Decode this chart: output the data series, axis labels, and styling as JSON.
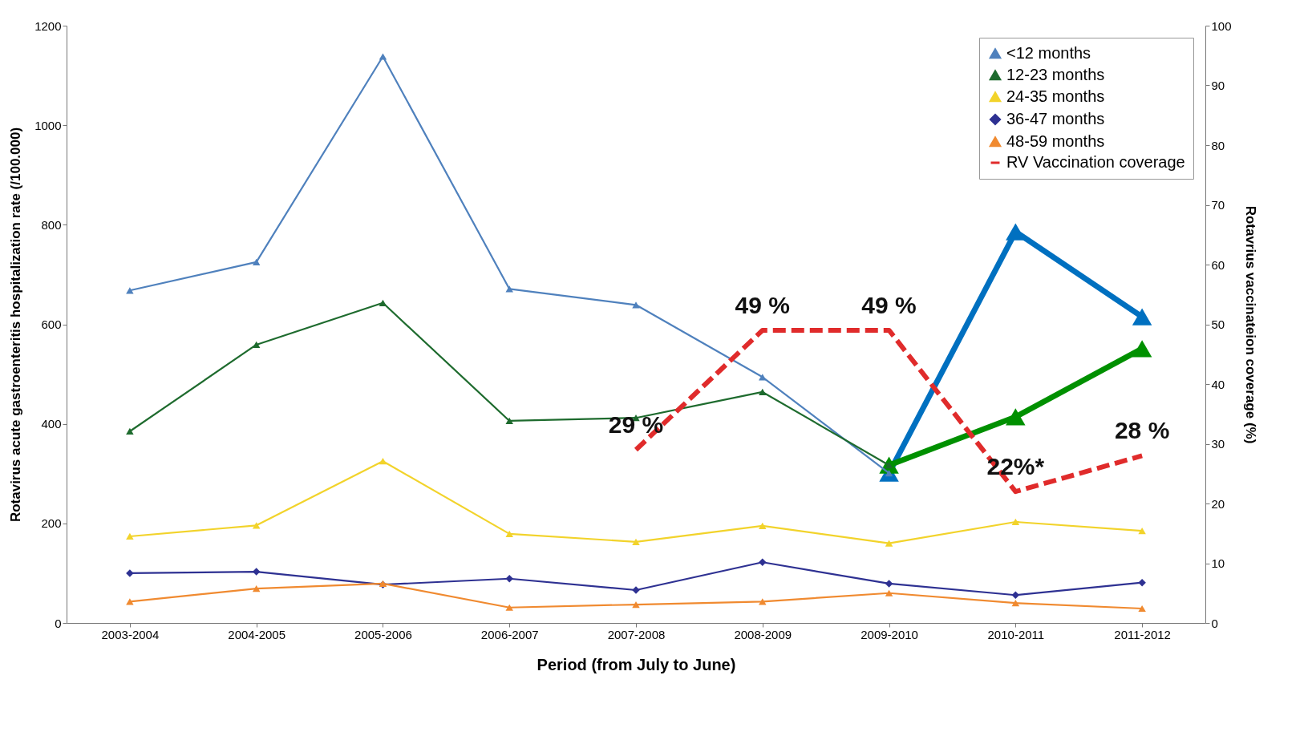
{
  "chart_data": {
    "type": "line",
    "xlabel": "Period (from July to June)",
    "ylabel": "Rotavirus acute gastroenteritis hospitalization rate (/100.000)",
    "y2label": "Rotavrius vaccinateion coverage (%)",
    "categories": [
      "2003-2004",
      "2004-2005",
      "2005-2006",
      "2006-2007",
      "2007-2008",
      "2008-2009",
      "2009-2010",
      "2010-2011",
      "2011-2012"
    ],
    "series": [
      {
        "color": "#0070c0",
        "marker": "triangle",
        "values": [
          null,
          null,
          null,
          null,
          null,
          null,
          301,
          786,
          615
        ]
      },
      {
        "color": "#009000",
        "marker": "triangle",
        "values": [
          null,
          null,
          null,
          null,
          null,
          null,
          317,
          414,
          551
        ]
      },
      {
        "name": "<12 months",
        "color": "#4f81bd",
        "marker": "triangle",
        "values": [
          668,
          725,
          1138,
          671,
          639,
          494,
          301,
          null,
          null
        ]
      },
      {
        "name": "12-23 months",
        "color": "#1e6b2e",
        "marker": "triangle",
        "values": [
          385,
          559,
          643,
          406,
          412,
          464,
          317,
          null,
          null
        ]
      },
      {
        "name": "24-35 months",
        "color": "#f2d32b",
        "marker": "triangle",
        "values": [
          174,
          196,
          325,
          179,
          163,
          195,
          160,
          203,
          185
        ]
      },
      {
        "name": "36-47 months",
        "color": "#2e3192",
        "marker": "diamond",
        "values": [
          100,
          103,
          77,
          89,
          66,
          122,
          79,
          56,
          81
        ]
      },
      {
        "name": "48-59 months",
        "color": "#f08a30",
        "marker": "triangle",
        "values": [
          43,
          69,
          79,
          31,
          37,
          43,
          60,
          40,
          29
        ]
      },
      {
        "name": "RV Vaccination coverage",
        "color": "#e02b2b",
        "axis": "y2",
        "line_style": "dashed",
        "marker": "none",
        "values": [
          null,
          null,
          null,
          null,
          29,
          49,
          49,
          22,
          28
        ],
        "value_labels": [
          null,
          null,
          null,
          null,
          "29 %",
          "49 %",
          "49 %",
          "22%*",
          "28 %"
        ]
      }
    ],
    "ylim": [
      0,
      1200
    ],
    "yticks": [
      0,
      200,
      400,
      600,
      800,
      1000,
      1200
    ],
    "y2lim": [
      0,
      100
    ],
    "y2ticks": [
      0,
      10,
      20,
      30,
      40,
      50,
      60,
      70,
      80,
      90,
      100
    ],
    "grid": false,
    "legend": "top right"
  }
}
